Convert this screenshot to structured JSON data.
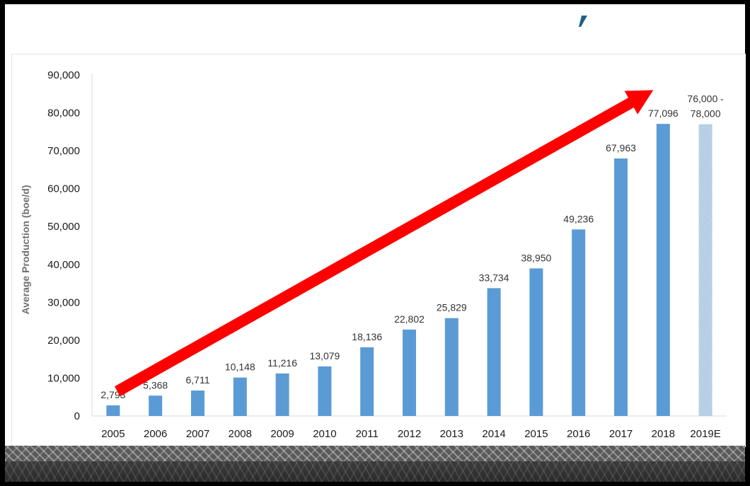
{
  "chart_data": {
    "type": "bar",
    "title": "",
    "xlabel": "",
    "ylabel": "Average Production (boe/d)",
    "ylim": [
      0,
      90000
    ],
    "yticks": [
      0,
      10000,
      20000,
      30000,
      40000,
      50000,
      60000,
      70000,
      80000,
      90000
    ],
    "ytick_labels": [
      "0",
      "10,000",
      "20,000",
      "30,000",
      "40,000",
      "50,000",
      "60,000",
      "70,000",
      "80,000",
      "90,000"
    ],
    "categories": [
      "2005",
      "2006",
      "2007",
      "2008",
      "2009",
      "2010",
      "2011",
      "2012",
      "2013",
      "2014",
      "2015",
      "2016",
      "2017",
      "2018",
      "2019E"
    ],
    "values": [
      2793,
      5368,
      6711,
      10148,
      11216,
      13079,
      18136,
      22802,
      25829,
      33734,
      38950,
      49236,
      67963,
      77096,
      77000
    ],
    "data_labels": [
      "2,793",
      "5,368",
      "6,711",
      "10,148",
      "11,216",
      "13,079",
      "18,136",
      "22,802",
      "25,829",
      "33,734",
      "38,950",
      "49,236",
      "67,963",
      "77,096",
      "76,000 -\n78,000"
    ],
    "estimate_category": "2019E",
    "grid": false,
    "legend": "none",
    "colors": {
      "bar": "#5b9bd5",
      "estimate_bar": "#bcd3e8",
      "arrow": "#ff0000",
      "axis": "#d9d9d9",
      "logo_mark": "#1f5f8b"
    },
    "annotations": [
      {
        "type": "trend-arrow",
        "from": {
          "category": "2005",
          "value": 6500
        },
        "to": {
          "category": "2018",
          "value": 86000
        }
      }
    ]
  },
  "decor": {
    "logo_mark_icon": "blue-slash-mark",
    "footer_pattern": "gray-textured-band"
  }
}
